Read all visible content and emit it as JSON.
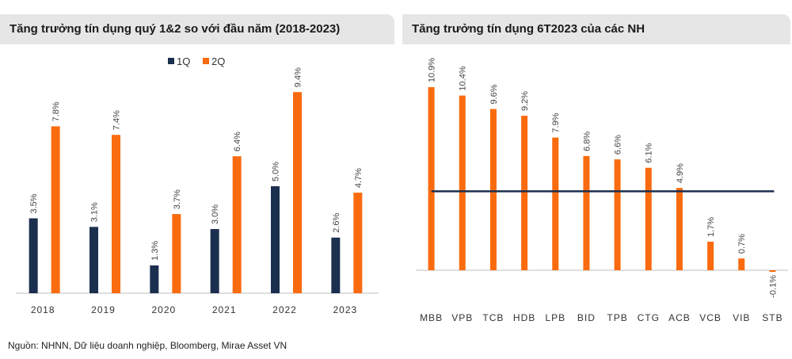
{
  "colors": {
    "q1": "#1b2f4e",
    "q2": "#f96b0e",
    "axis": "#bfbfbf",
    "avg_line": "#1b2f4e"
  },
  "source": "Nguồn: NHNN, Dữ liệu doanh nghiệp, Bloomberg, Mirae Asset VN",
  "chart_data": [
    {
      "type": "bar",
      "title": "Tăng trưởng tín dụng quý 1&2 so với đầu năm (2018-2023)",
      "categories": [
        "2018",
        "2019",
        "2020",
        "2021",
        "2022",
        "2023"
      ],
      "series": [
        {
          "name": "1Q",
          "values": [
            3.5,
            3.1,
            1.3,
            3.0,
            5.0,
            2.6
          ],
          "labels": [
            "3.5%",
            "3.1%",
            "1.3%",
            "3.0%",
            "5.0%",
            "2.6%"
          ]
        },
        {
          "name": "2Q",
          "values": [
            7.8,
            7.4,
            3.7,
            6.4,
            9.4,
            4.7
          ],
          "labels": [
            "7.8%",
            "7.4%",
            "3.7%",
            "6.4%",
            "9.4%",
            "4.7%"
          ]
        }
      ],
      "legend": "top-center",
      "ylim": [
        0,
        10
      ]
    },
    {
      "type": "bar",
      "title": "Tăng trưởng tín dụng 6T2023 của các NH",
      "categories": [
        "MBB",
        "VPB",
        "TCB",
        "HDB",
        "LPB",
        "BID",
        "TPB",
        "CTG",
        "ACB",
        "VCB",
        "VIB",
        "STB"
      ],
      "values": [
        10.9,
        10.4,
        9.6,
        9.2,
        7.9,
        6.8,
        6.6,
        6.1,
        4.9,
        1.7,
        0.7,
        -0.1
      ],
      "labels": [
        "10.9%",
        "10.4%",
        "9.6%",
        "9.2%",
        "7.9%",
        "6.8%",
        "6.6%",
        "6.1%",
        "4.9%",
        "1.7%",
        "0.7%",
        "-0.1%"
      ],
      "reference_line": 4.7,
      "ylim": [
        -1,
        11.5
      ]
    }
  ]
}
